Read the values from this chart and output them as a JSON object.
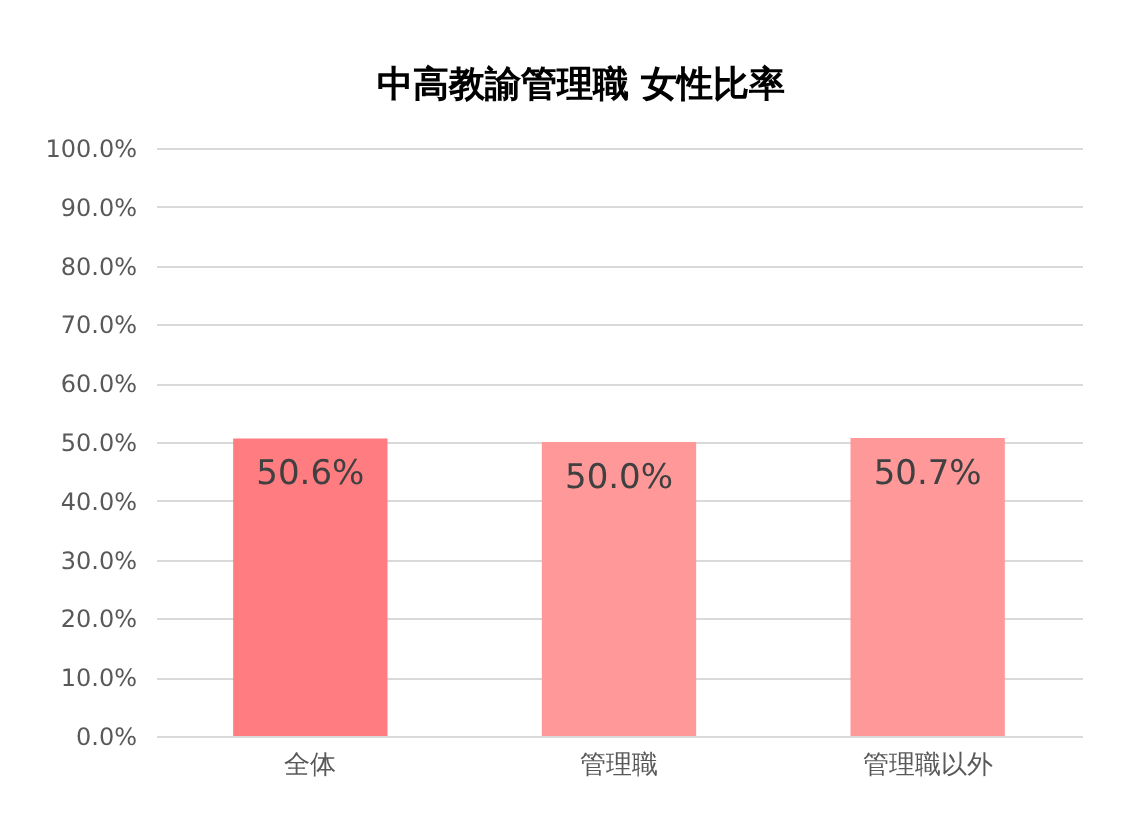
{
  "chart_data": {
    "type": "bar",
    "title": "中高教諭管理職 女性比率",
    "categories": [
      "全体",
      "管理職",
      "管理職以外"
    ],
    "values": [
      50.6,
      50.0,
      50.7
    ],
    "colors": [
      "#ff7c80",
      "#ff9999",
      "#ff9999"
    ],
    "value_labels": [
      "50.6%",
      "50.0%",
      "50.7%"
    ],
    "ylim": [
      0,
      100
    ],
    "yticks": [
      {
        "value": 0,
        "label": "0.0%"
      },
      {
        "value": 10,
        "label": "10.0%"
      },
      {
        "value": 20,
        "label": "20.0%"
      },
      {
        "value": 30,
        "label": "30.0%"
      },
      {
        "value": 40,
        "label": "40.0%"
      },
      {
        "value": 50,
        "label": "50.0%"
      },
      {
        "value": 60,
        "label": "60.0%"
      },
      {
        "value": 70,
        "label": "70.0%"
      },
      {
        "value": 80,
        "label": "80.0%"
      },
      {
        "value": 90,
        "label": "90.0%"
      },
      {
        "value": 100,
        "label": "100.0%"
      }
    ],
    "grid": "y"
  }
}
